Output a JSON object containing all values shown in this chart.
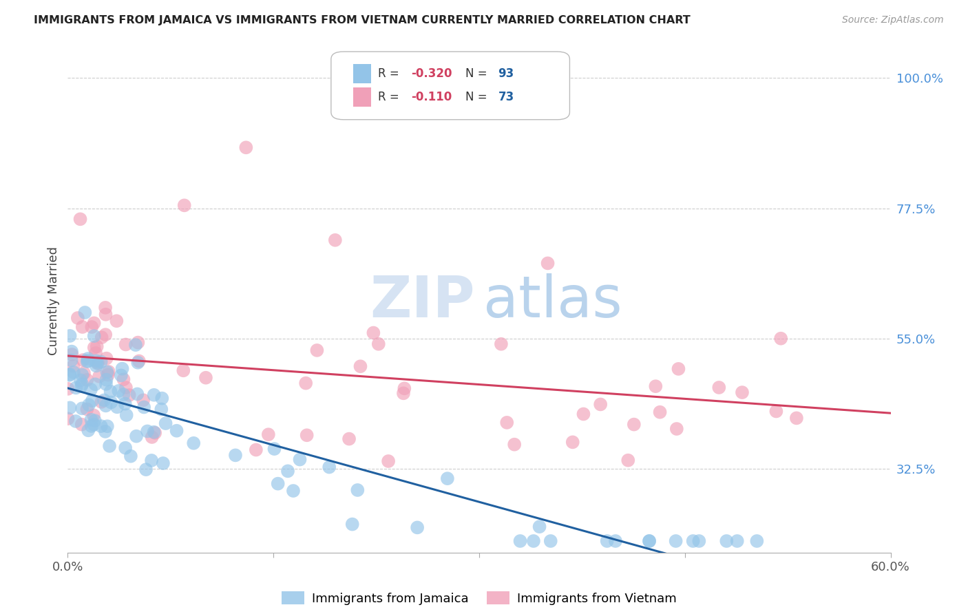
{
  "title": "IMMIGRANTS FROM JAMAICA VS IMMIGRANTS FROM VIETNAM CURRENTLY MARRIED CORRELATION CHART",
  "source": "Source: ZipAtlas.com",
  "ylabel": "Currently Married",
  "ytick_labels": [
    "100.0%",
    "77.5%",
    "55.0%",
    "32.5%"
  ],
  "ytick_values": [
    1.0,
    0.775,
    0.55,
    0.325
  ],
  "xlim": [
    0.0,
    0.6
  ],
  "ylim": [
    0.18,
    1.05
  ],
  "blue_color": "#93c4e8",
  "pink_color": "#f0a0b8",
  "blue_line_color": "#2060a0",
  "pink_line_color": "#d04060",
  "blue_r": "-0.320",
  "blue_n": "93",
  "pink_r": "-0.110",
  "pink_n": "73",
  "r_color": "#d04060",
  "n_color": "#2060a0",
  "watermark_zip": "ZIP",
  "watermark_atlas": "atlas",
  "legend1": "Immigrants from Jamaica",
  "legend2": "Immigrants from Vietnam",
  "xtick_positions": [
    0.0,
    0.15,
    0.3,
    0.45,
    0.6
  ],
  "xtick_labels": [
    "0.0%",
    "",
    "",
    "",
    "60.0%"
  ]
}
